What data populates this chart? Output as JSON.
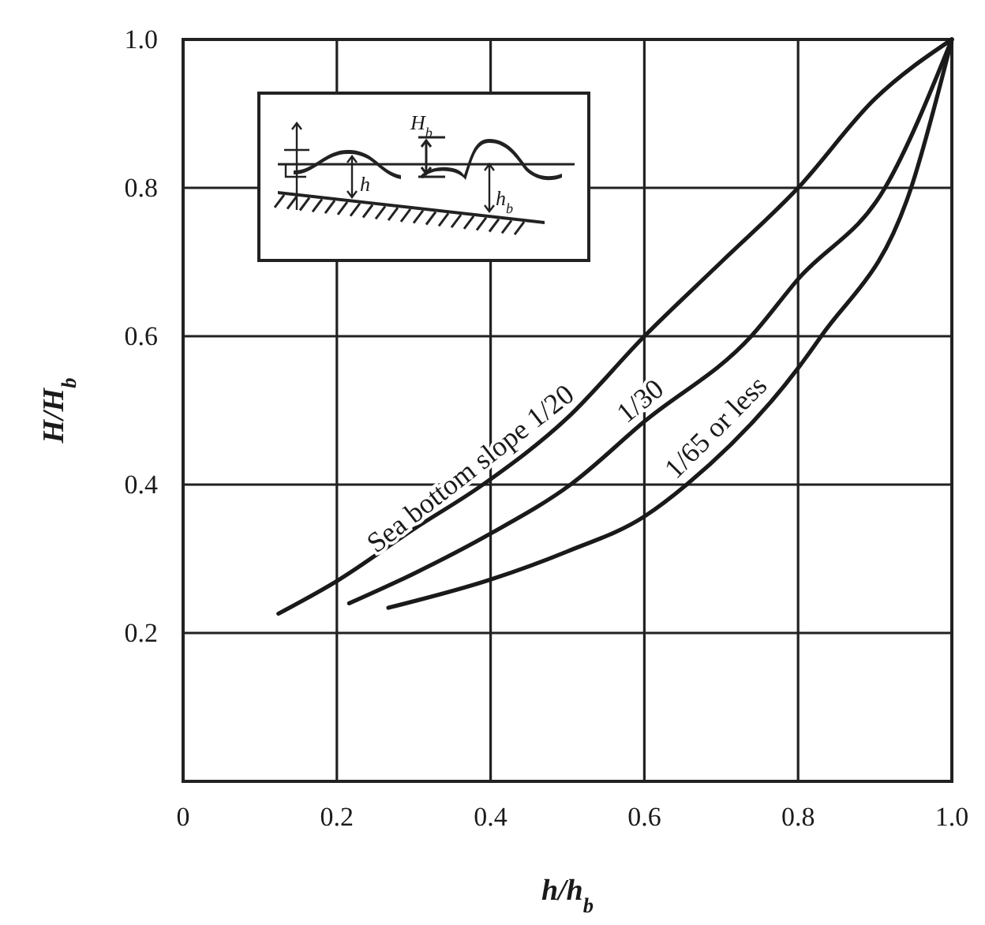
{
  "chart_data": {
    "type": "line",
    "xlabel": "h/h$_{b}$",
    "ylabel": "H/H$_{b}$",
    "xlim": [
      0,
      1
    ],
    "ylim": [
      0,
      1
    ],
    "xticks": [
      0,
      0.2,
      0.4,
      0.6,
      0.8,
      {
        "value": 1,
        "label": "1.0"
      }
    ],
    "yticks": [
      0.2,
      0.4,
      0.6,
      0.8,
      {
        "value": 1,
        "label": "1.0"
      }
    ],
    "grid": true,
    "marker": "none",
    "line_style": "solid",
    "annotations": [
      "H$_{b}$",
      "h",
      "h$_{b}$"
    ],
    "series": [
      {
        "name": "Sea bottom slope 1/20",
        "color": "#1a1a1a",
        "x": [
          0.124,
          0.2,
          0.3,
          0.39,
          0.5,
          0.6,
          0.7,
          0.8,
          0.9,
          1
        ],
        "values": [
          0.226,
          0.27,
          0.34,
          0.4,
          0.49,
          0.6,
          0.7,
          0.8,
          0.92,
          1
        ]
      },
      {
        "name": "1/30",
        "color": "#1a1a1a",
        "x": [
          0.216,
          0.3,
          0.4,
          0.504,
          0.6,
          0.739,
          0.8,
          0.913,
          1
        ],
        "values": [
          0.24,
          0.28,
          0.334,
          0.4,
          0.485,
          0.6,
          0.677,
          0.8,
          1
        ]
      },
      {
        "name": "1/65 or less",
        "color": "#1a1a1a",
        "x": [
          0.267,
          0.4,
          0.5,
          0.6,
          0.655,
          0.8,
          0.83,
          0.947,
          1
        ],
        "values": [
          0.234,
          0.272,
          0.31,
          0.357,
          0.4,
          0.557,
          0.6,
          0.8,
          1
        ]
      }
    ]
  }
}
